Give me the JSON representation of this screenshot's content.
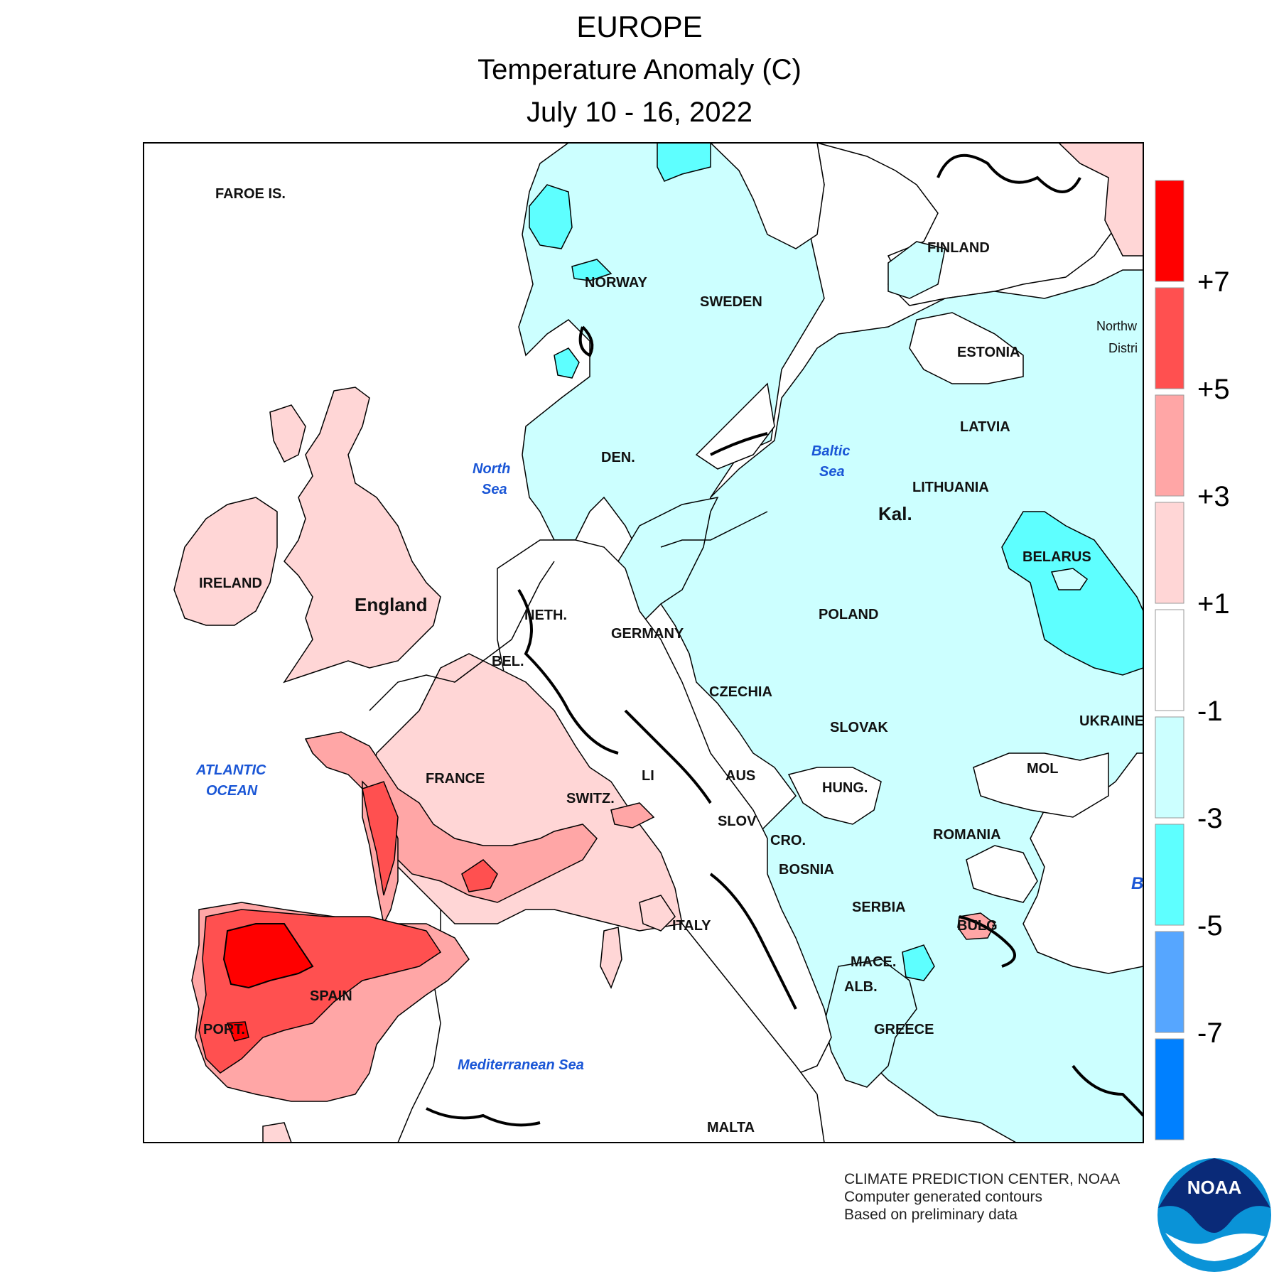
{
  "header": {
    "region": "EUROPE",
    "variable": "Temperature Anomaly (C)",
    "period": "July 10 - 16, 2022"
  },
  "map_labels": {
    "faroe": "FAROE IS.",
    "norway": "NORWAY",
    "sweden": "SWEDEN",
    "finland": "FINLAND",
    "estonia": "ESTONIA",
    "northwest_district_1": "Northw",
    "northwest_district_2": "Distri",
    "latvia": "LATVIA",
    "lithuania": "LITHUANIA",
    "kal": "Kal.",
    "belarus": "BELARUS",
    "ireland": "IRELAND",
    "england": "England",
    "den": "DEN.",
    "neth": "NETH.",
    "germany": "GERMANY",
    "poland": "POLAND",
    "bel": "BEL.",
    "czechia": "CZECHIA",
    "ukraine": "UKRAINE",
    "slovak": "SLOVAK",
    "france": "FRANCE",
    "aus": "AUS",
    "li": "LI",
    "mol": "MOL",
    "hung": "HUNG.",
    "switz": "SWITZ.",
    "slov": "SLOV",
    "romania": "ROMANIA",
    "cro": "CRO.",
    "bosnia": "BOSNIA",
    "serbia": "SERBIA",
    "italy": "ITALY",
    "bulg": "BULG",
    "mace": "MACE.",
    "spain": "SPAIN",
    "alb": "ALB.",
    "port": "PORT.",
    "greece": "GREECE",
    "malta": "MALTA"
  },
  "seas": {
    "north_1": "North",
    "north_2": "Sea",
    "baltic_1": "Baltic",
    "baltic_2": "Sea",
    "atlantic_1": "ATLANTIC",
    "atlantic_2": "OCEAN",
    "med": "Mediterranean Sea",
    "black": "B"
  },
  "legend": {
    "colors": [
      "#ff0000",
      "#ff5050",
      "#ffa6a6",
      "#ffd6d6",
      "#ffffff",
      "#ccffff",
      "#5effff",
      "#56a6ff",
      "#0080ff"
    ],
    "labels": [
      "+7",
      "+5",
      "+3",
      "+1",
      "-1",
      "-3",
      "-5",
      "-7"
    ]
  },
  "colors": {
    "plus7": "#ff0000",
    "plus5": "#ff5050",
    "plus3": "#ffa6a6",
    "plus1": "#ffd6d6",
    "neutral": "#ffffff",
    "minus1": "#ccffff",
    "minus3": "#5effff",
    "sea_label": "#1a56d6"
  },
  "credits": {
    "line1": "CLIMATE PREDICTION CENTER, NOAA",
    "line2": "Computer generated contours",
    "line3": "Based on preliminary data"
  },
  "logo": {
    "text": "NOAA"
  }
}
